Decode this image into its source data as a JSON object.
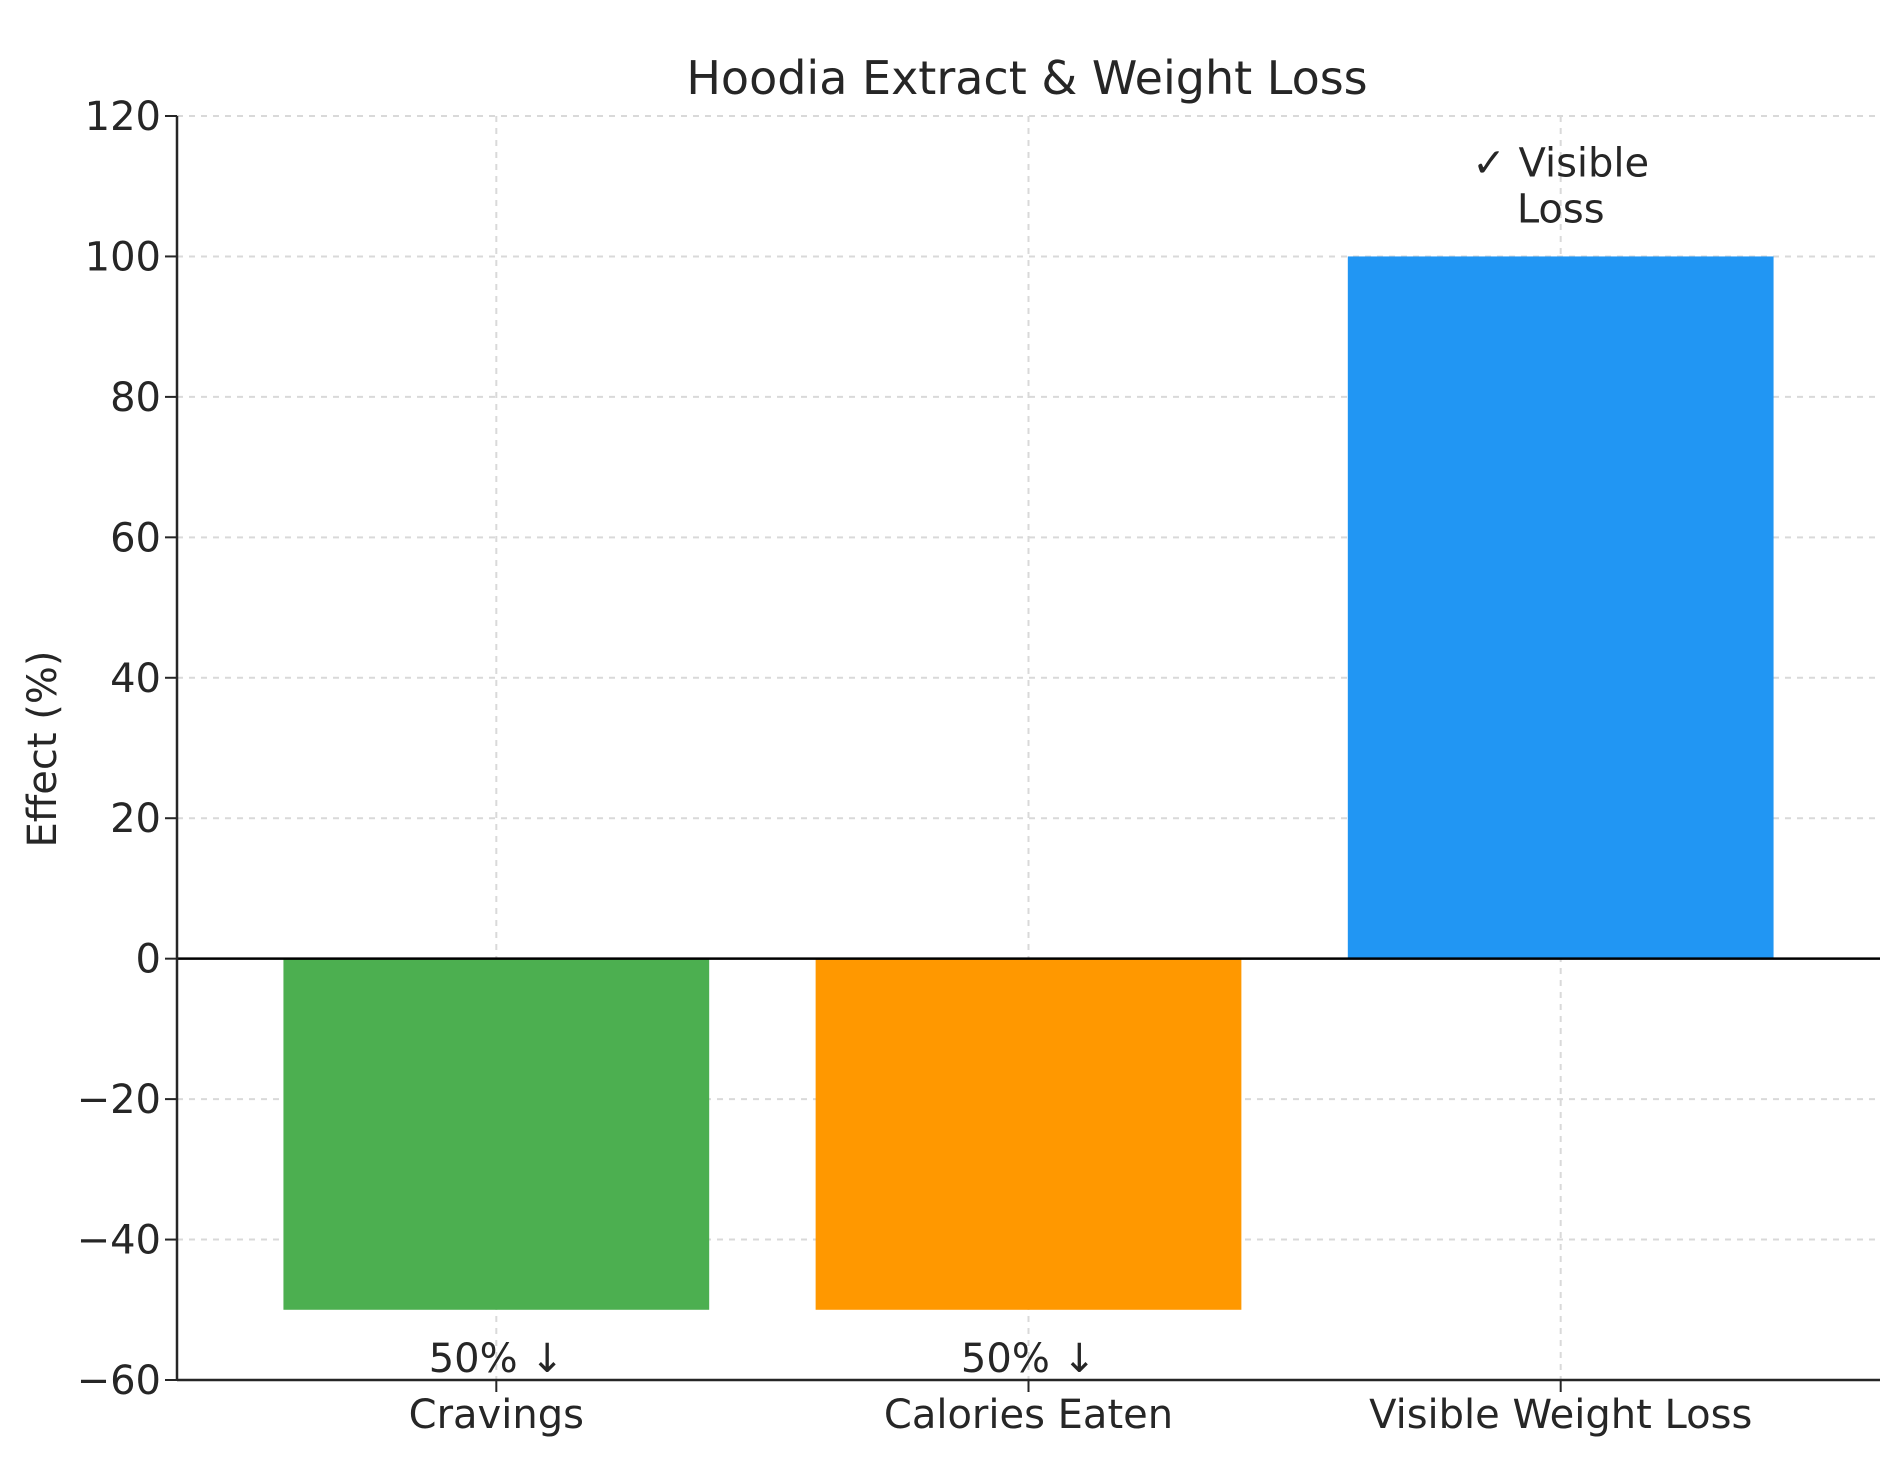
{
  "chart_data": {
    "type": "bar",
    "title": "Hoodia Extract & Weight Loss",
    "xlabel": "",
    "ylabel": "Effect (%)",
    "categories": [
      "Cravings",
      "Calories Eaten",
      "Visible Weight Loss"
    ],
    "values": [
      -50,
      -50,
      100
    ],
    "colors": [
      "#4caf50",
      "#ff9800",
      "#2196f3"
    ],
    "bar_labels": [
      "50% ↓",
      "50% ↓",
      "✓ Visible\nLoss"
    ],
    "ylim": [
      -60,
      120
    ],
    "yticks": [
      -60,
      -40,
      -20,
      0,
      20,
      40,
      60,
      80,
      100,
      120
    ],
    "ytick_labels": [
      "−60",
      "−40",
      "−20",
      "0",
      "20",
      "40",
      "60",
      "80",
      "100",
      "120"
    ],
    "grid": true,
    "zero_line": true
  }
}
